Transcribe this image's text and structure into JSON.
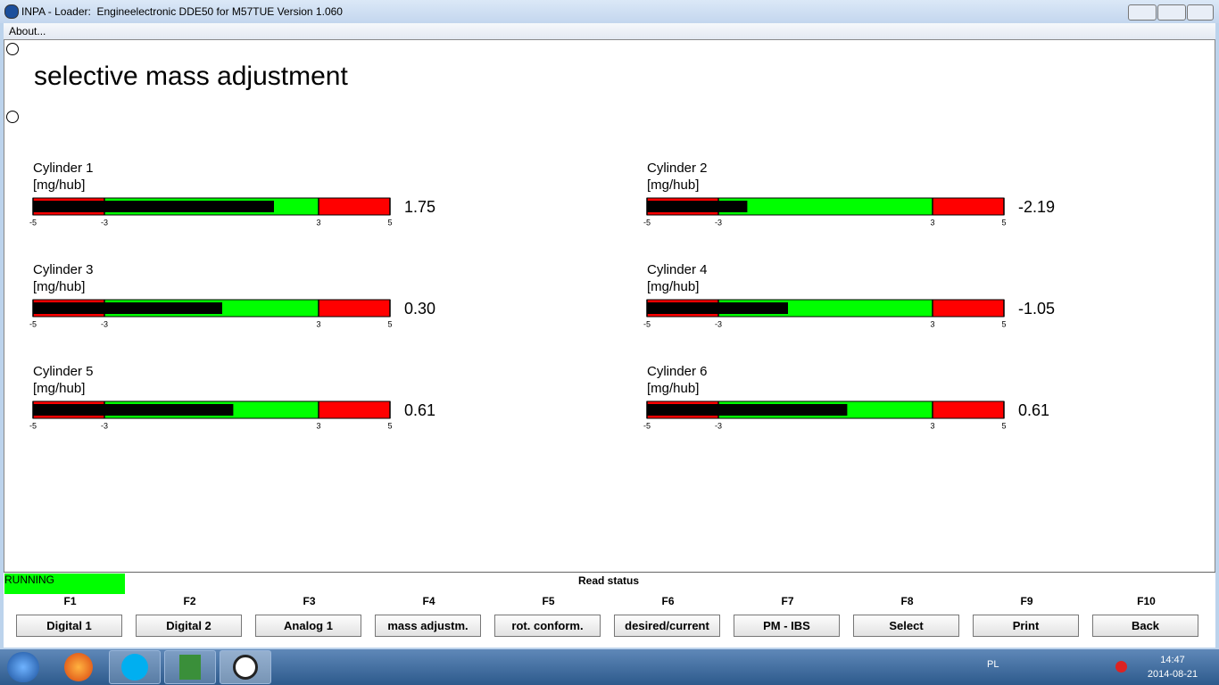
{
  "window": {
    "title": "INPA - Loader:  Engineelectronic DDE50 for M57TUE Version 1.060",
    "menu": [
      "About..."
    ]
  },
  "page": {
    "title": "selective mass adjustment"
  },
  "gauges": [
    {
      "name": "Cylinder 1",
      "unit": "[mg/hub]",
      "value": 1.75,
      "value_label": "1.75",
      "min": -5,
      "max": 5,
      "ticks": [
        -5,
        -3,
        3,
        5
      ],
      "zones": [
        {
          "from": -5,
          "to": -3,
          "color": "#ff0000"
        },
        {
          "from": -3,
          "to": 3,
          "color": "#00ff00"
        },
        {
          "from": 3,
          "to": 5,
          "color": "#ff0000"
        }
      ],
      "bar_color": "#000000"
    },
    {
      "name": "Cylinder 2",
      "unit": "[mg/hub]",
      "value": -2.19,
      "value_label": "-2.19",
      "min": -5,
      "max": 5,
      "ticks": [
        -5,
        -3,
        3,
        5
      ],
      "zones": [
        {
          "from": -5,
          "to": -3,
          "color": "#ff0000"
        },
        {
          "from": -3,
          "to": 3,
          "color": "#00ff00"
        },
        {
          "from": 3,
          "to": 5,
          "color": "#ff0000"
        }
      ],
      "bar_color": "#000000"
    },
    {
      "name": "Cylinder 3",
      "unit": "[mg/hub]",
      "value": 0.3,
      "value_label": "0.30",
      "min": -5,
      "max": 5,
      "ticks": [
        -5,
        -3,
        3,
        5
      ],
      "zones": [
        {
          "from": -5,
          "to": -3,
          "color": "#ff0000"
        },
        {
          "from": -3,
          "to": 3,
          "color": "#00ff00"
        },
        {
          "from": 3,
          "to": 5,
          "color": "#ff0000"
        }
      ],
      "bar_color": "#000000"
    },
    {
      "name": "Cylinder 4",
      "unit": "[mg/hub]",
      "value": -1.05,
      "value_label": "-1.05",
      "min": -5,
      "max": 5,
      "ticks": [
        -5,
        -3,
        3,
        5
      ],
      "zones": [
        {
          "from": -5,
          "to": -3,
          "color": "#ff0000"
        },
        {
          "from": -3,
          "to": 3,
          "color": "#00ff00"
        },
        {
          "from": 3,
          "to": 5,
          "color": "#ff0000"
        }
      ],
      "bar_color": "#000000"
    },
    {
      "name": "Cylinder 5",
      "unit": "[mg/hub]",
      "value": 0.61,
      "value_label": "0.61",
      "min": -5,
      "max": 5,
      "ticks": [
        -5,
        -3,
        3,
        5
      ],
      "zones": [
        {
          "from": -5,
          "to": -3,
          "color": "#ff0000"
        },
        {
          "from": -3,
          "to": 3,
          "color": "#00ff00"
        },
        {
          "from": 3,
          "to": 5,
          "color": "#ff0000"
        }
      ],
      "bar_color": "#000000"
    },
    {
      "name": "Cylinder 6",
      "unit": "[mg/hub]",
      "value": 0.61,
      "value_label": "0.61",
      "min": -5,
      "max": 5,
      "ticks": [
        -5,
        -3,
        3,
        5
      ],
      "zones": [
        {
          "from": -5,
          "to": -3,
          "color": "#ff0000"
        },
        {
          "from": -3,
          "to": 3,
          "color": "#00ff00"
        },
        {
          "from": 3,
          "to": 5,
          "color": "#ff0000"
        }
      ],
      "bar_color": "#000000"
    }
  ],
  "status": {
    "state": "RUNNING",
    "message": "Read status"
  },
  "function_keys": [
    {
      "key": "F1",
      "label": "Digital 1"
    },
    {
      "key": "F2",
      "label": "Digital 2"
    },
    {
      "key": "F3",
      "label": "Analog 1"
    },
    {
      "key": "F4",
      "label": "mass adjustm."
    },
    {
      "key": "F5",
      "label": "rot. conform."
    },
    {
      "key": "F6",
      "label": "desired/current"
    },
    {
      "key": "F7",
      "label": "PM - IBS"
    },
    {
      "key": "F8",
      "label": "Select"
    },
    {
      "key": "F9",
      "label": "Print"
    },
    {
      "key": "F10",
      "label": "Back"
    }
  ],
  "taskbar": {
    "language": "PL",
    "time": "14:47",
    "date": "2014-08-21"
  }
}
